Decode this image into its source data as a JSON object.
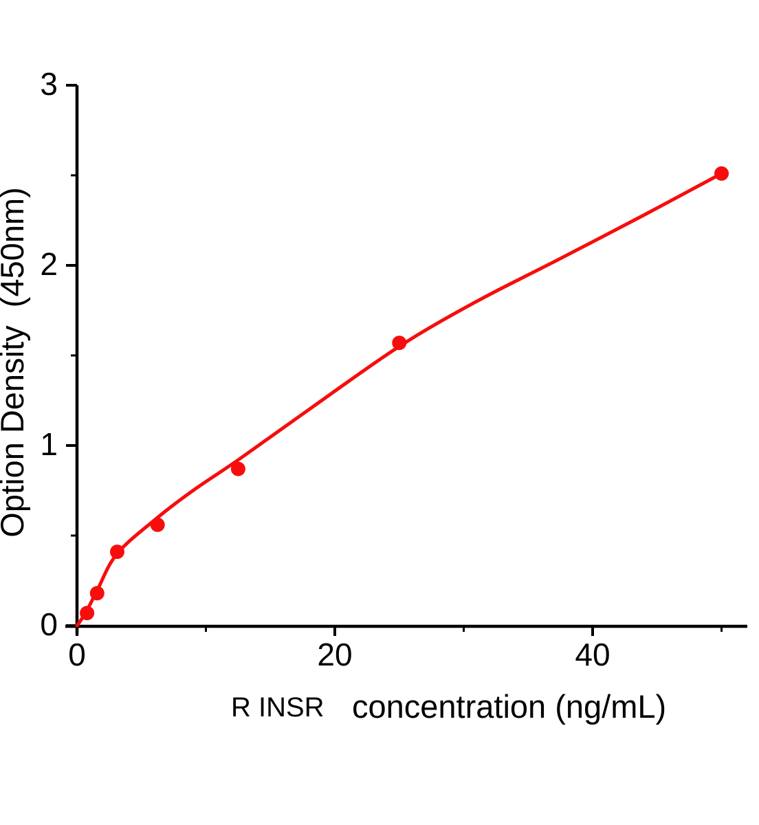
{
  "chart_data": {
    "type": "scatter",
    "title": "",
    "xlabel_prefix": "R INSR",
    "xlabel": "concentration (ng/mL)",
    "ylabel": "Option Density  (450nm)",
    "xlim": [
      0,
      52
    ],
    "ylim": [
      0,
      3
    ],
    "x_ticks_major": [
      0,
      20,
      40
    ],
    "x_ticks_minor": [
      10,
      30,
      50
    ],
    "y_ticks_major": [
      0,
      1,
      2,
      3
    ],
    "y_ticks_minor": [
      0.5,
      1.5,
      2.5
    ],
    "grid": false,
    "legend": "none",
    "series": [
      {
        "name": "standard-points",
        "type": "scatter",
        "points": [
          [
            0.78,
            0.07
          ],
          [
            1.56,
            0.18
          ],
          [
            3.12,
            0.41
          ],
          [
            6.25,
            0.56
          ],
          [
            12.5,
            0.87
          ],
          [
            25,
            1.57
          ],
          [
            50,
            2.51
          ]
        ]
      },
      {
        "name": "fitted-curve",
        "type": "line",
        "points": [
          [
            0,
            0
          ],
          [
            0.3,
            0.03
          ],
          [
            0.78,
            0.085
          ],
          [
            1.56,
            0.195
          ],
          [
            3.12,
            0.4
          ],
          [
            6.25,
            0.6
          ],
          [
            9,
            0.75
          ],
          [
            12.5,
            0.92
          ],
          [
            18,
            1.2
          ],
          [
            25,
            1.55
          ],
          [
            31,
            1.8
          ],
          [
            37,
            2.02
          ],
          [
            44,
            2.28
          ],
          [
            50,
            2.51
          ]
        ]
      }
    ],
    "colors": {
      "curve": "#f70d0d",
      "marker": "#f70d0d",
      "axis": "#000000",
      "text": "#000000"
    }
  }
}
